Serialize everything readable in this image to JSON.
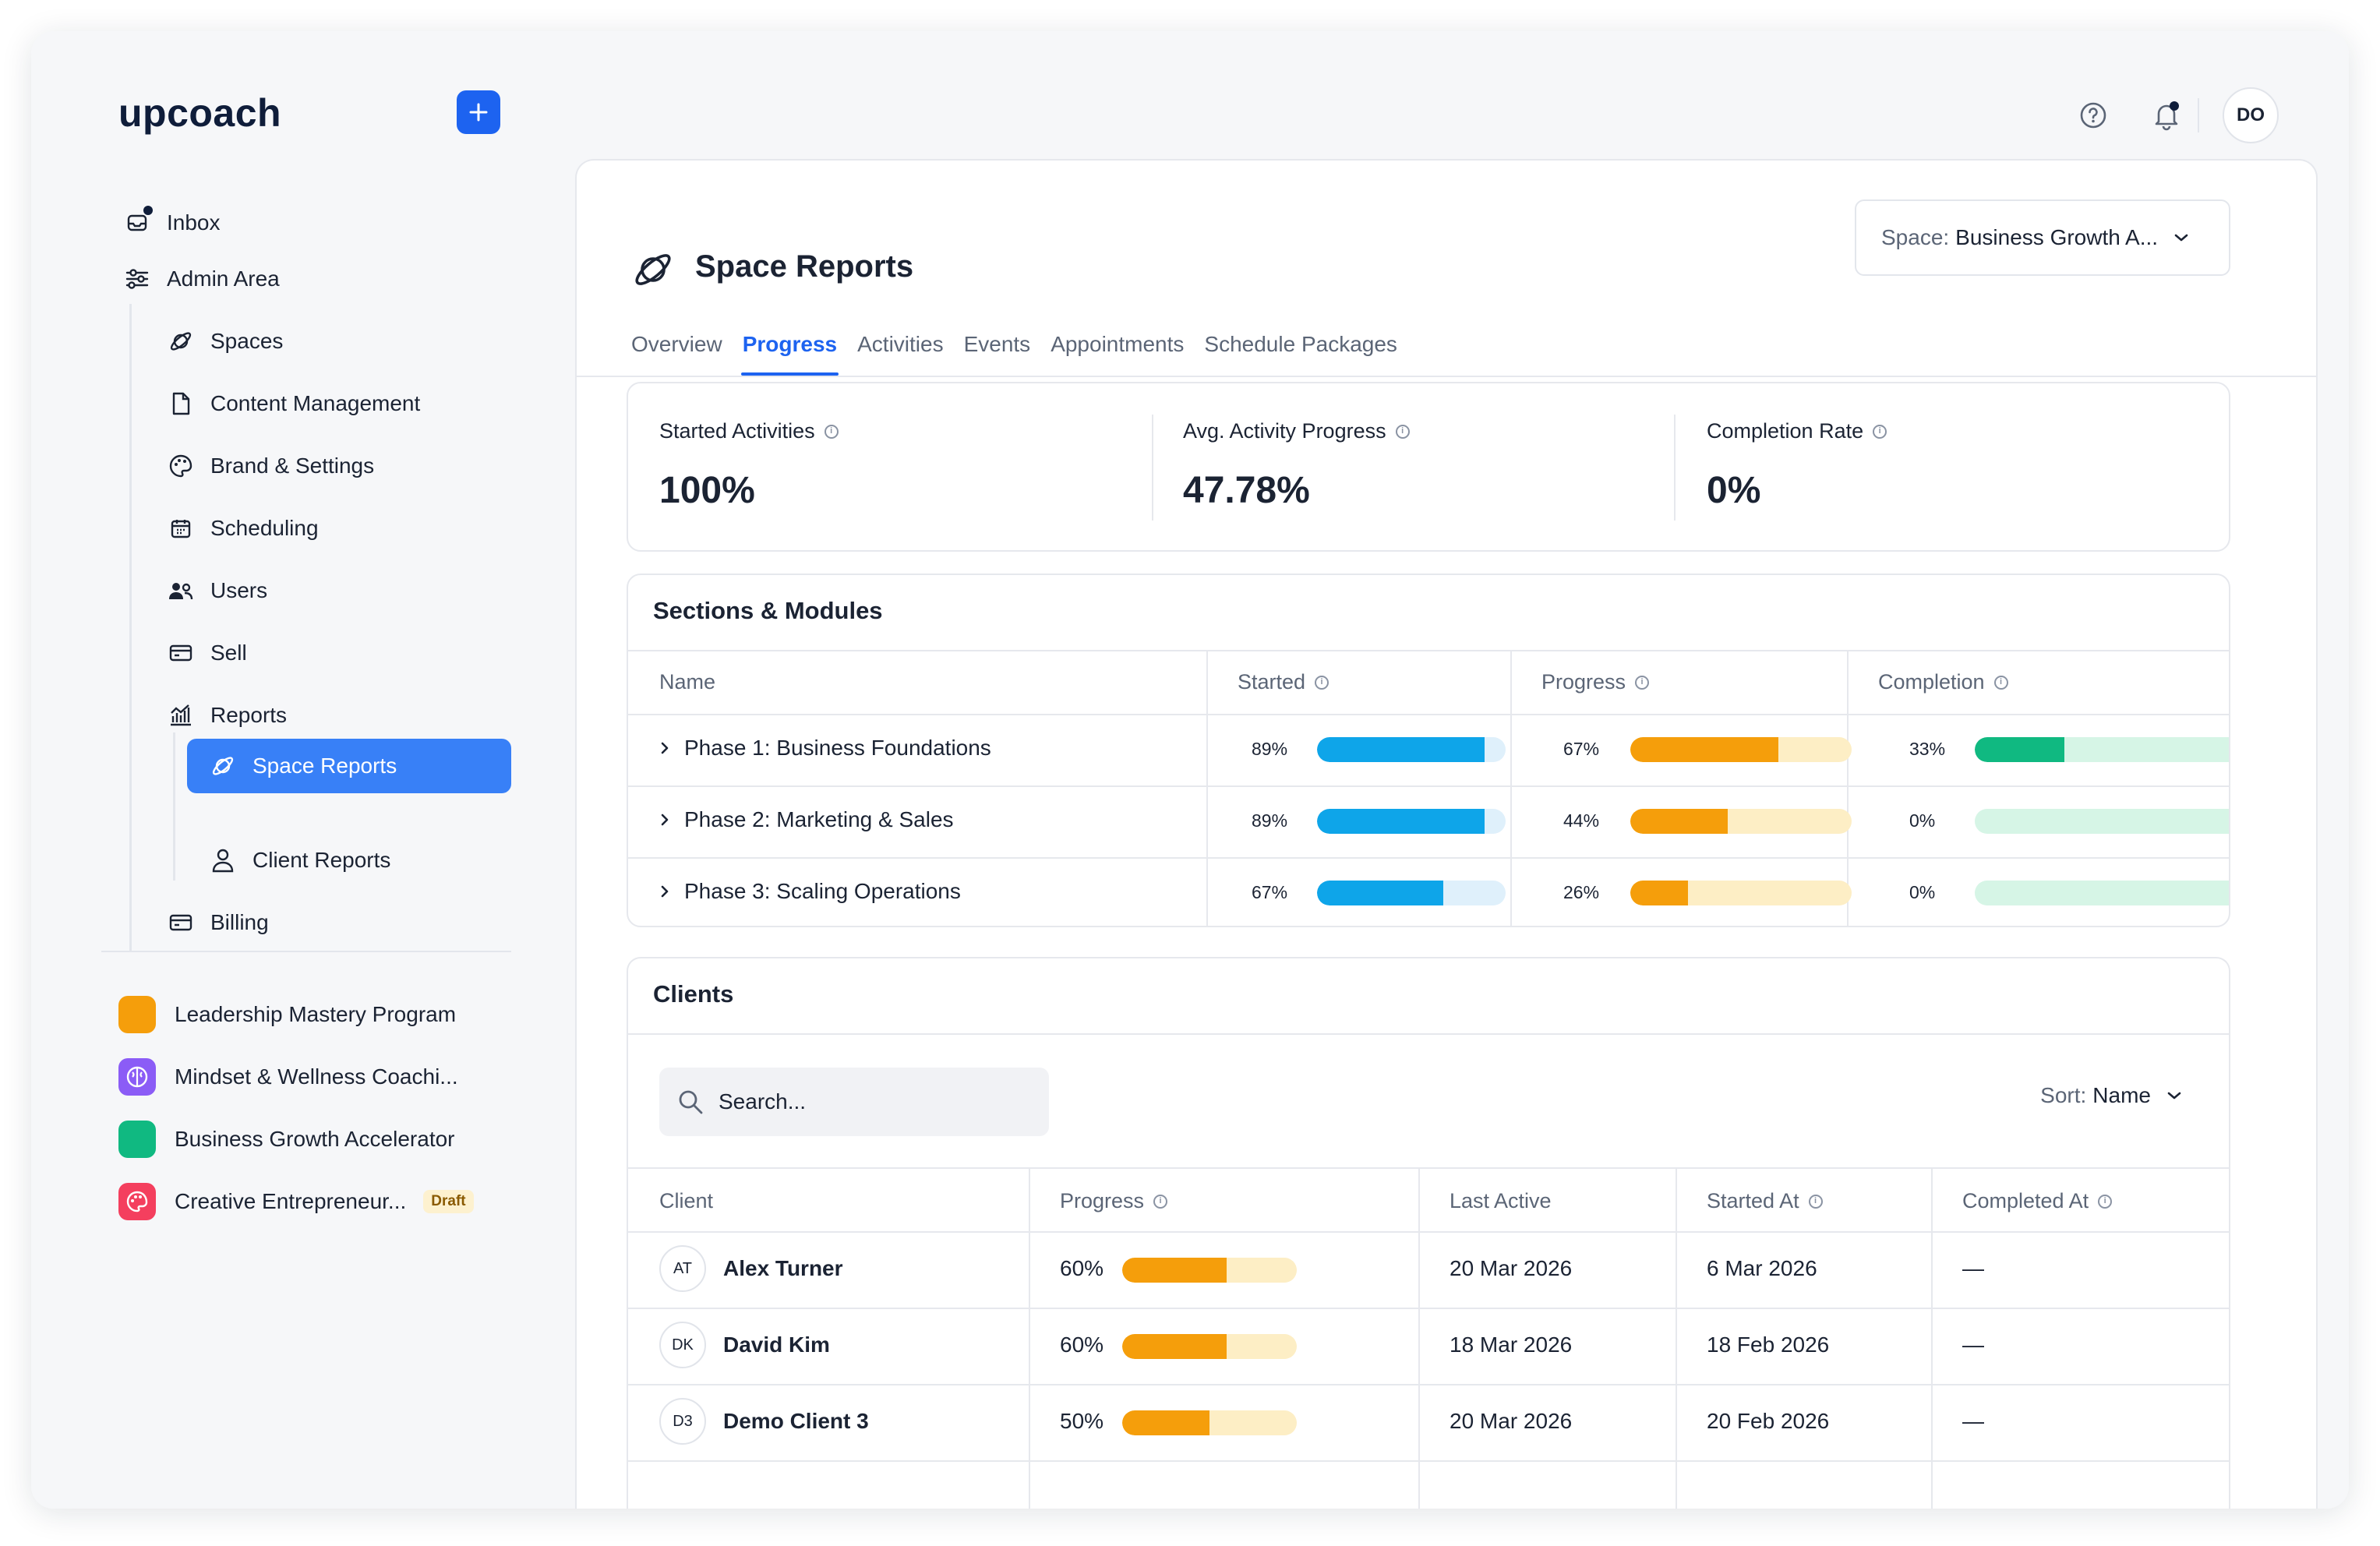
{
  "app": {
    "logo": "upcoach"
  },
  "colors": {
    "primary": "#1d63f0",
    "active_nav": "#3880f7",
    "blue_bar": "#0ea5e9",
    "orange_bar": "#f59e0b",
    "green_bar": "#10b981"
  },
  "sidebar": {
    "add_icon": "plus-icon",
    "inbox": "Inbox",
    "admin_area": "Admin Area",
    "items": [
      {
        "label": "Spaces",
        "icon": "planet-icon"
      },
      {
        "label": "Content Management",
        "icon": "document-icon"
      },
      {
        "label": "Brand & Settings",
        "icon": "palette-icon"
      },
      {
        "label": "Scheduling",
        "icon": "calendar-icon"
      },
      {
        "label": "Users",
        "icon": "users-icon"
      },
      {
        "label": "Sell",
        "icon": "card-icon"
      },
      {
        "label": "Reports",
        "icon": "chart-icon"
      }
    ],
    "reports_sub": [
      {
        "label": "Space Reports",
        "icon": "planet-icon"
      },
      {
        "label": "Client Reports",
        "icon": "user-icon"
      }
    ],
    "billing": "Billing",
    "spaces": [
      {
        "name": "Leadership Mastery Program",
        "color": "#f59e0b"
      },
      {
        "name": "Mindset & Wellness Coachi...",
        "color": "#8b5cf6"
      },
      {
        "name": "Business Growth Accelerator",
        "color": "#10b981"
      },
      {
        "name": "Creative Entrepreneur...",
        "color": "#f43f5e",
        "badge": "Draft"
      }
    ]
  },
  "topbar": {
    "avatar": "DO"
  },
  "main": {
    "title": "Space Reports",
    "space_select": {
      "label": "Space:",
      "value": "Business Growth A..."
    },
    "tabs": [
      "Overview",
      "Progress",
      "Activities",
      "Events",
      "Appointments",
      "Schedule Packages"
    ],
    "active_tab": "Progress",
    "stats": [
      {
        "label": "Started Activities",
        "value": "100%"
      },
      {
        "label": "Avg. Activity Progress",
        "value": "47.78%"
      },
      {
        "label": "Completion Rate",
        "value": "0%"
      }
    ],
    "sections": {
      "title": "Sections & Modules",
      "headers": {
        "name": "Name",
        "started": "Started",
        "progress": "Progress",
        "completion": "Completion"
      },
      "rows": [
        {
          "name": "Phase 1: Business Foundations",
          "started": 89,
          "started_label": "89%",
          "progress": 67,
          "progress_label": "67%",
          "completion": 33,
          "completion_label": "33%"
        },
        {
          "name": "Phase 2: Marketing & Sales",
          "started": 89,
          "started_label": "89%",
          "progress": 44,
          "progress_label": "44%",
          "completion": 0,
          "completion_label": "0%"
        },
        {
          "name": "Phase 3: Scaling Operations",
          "started": 67,
          "started_label": "67%",
          "progress": 26,
          "progress_label": "26%",
          "completion": 0,
          "completion_label": "0%"
        }
      ]
    },
    "clients": {
      "title": "Clients",
      "search_placeholder": "Search...",
      "sort": {
        "label": "Sort:",
        "value": "Name"
      },
      "headers": {
        "client": "Client",
        "progress": "Progress",
        "last_active": "Last Active",
        "started_at": "Started At",
        "completed_at": "Completed At"
      },
      "rows": [
        {
          "initials": "AT",
          "name": "Alex Turner",
          "progress": 60,
          "progress_label": "60%",
          "last_active": "20 Mar 2026",
          "started_at": "6 Mar 2026",
          "completed_at": "—"
        },
        {
          "initials": "DK",
          "name": "David Kim",
          "progress": 60,
          "progress_label": "60%",
          "last_active": "18 Mar 2026",
          "started_at": "18 Feb 2026",
          "completed_at": "—"
        },
        {
          "initials": "D3",
          "name": "Demo Client 3",
          "progress": 50,
          "progress_label": "50%",
          "last_active": "20 Mar 2026",
          "started_at": "20 Feb 2026",
          "completed_at": "—"
        }
      ]
    }
  }
}
